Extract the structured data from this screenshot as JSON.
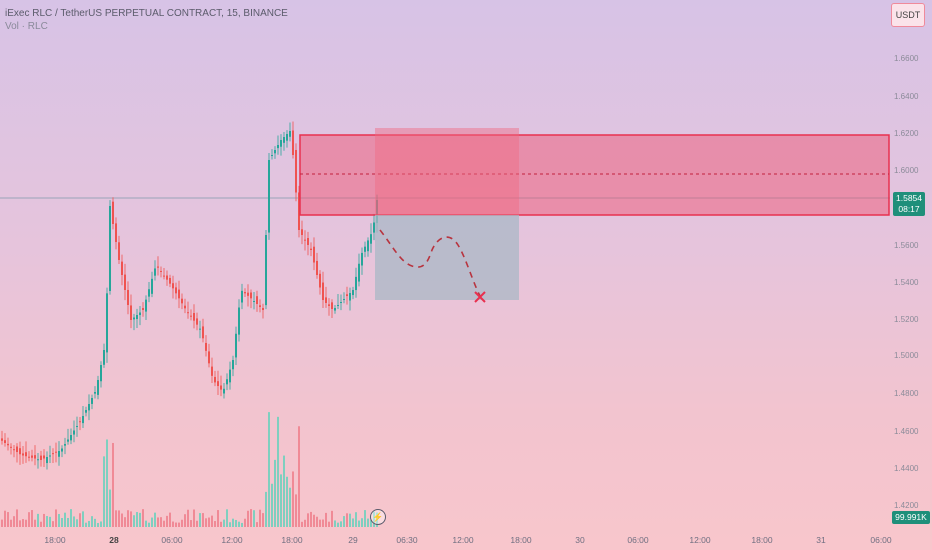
{
  "header": {
    "symbol_line": "iExec RLC / TetherUS PERPETUAL CONTRACT, 15, BINANCE",
    "volume_line": "Vol · RLC"
  },
  "currency_button": "USDT",
  "price_axis": [
    "1.6600",
    "1.6400",
    "1.6200",
    "1.6000",
    "1.5600",
    "1.5400",
    "1.5200",
    "1.5000",
    "1.4800",
    "1.4600",
    "1.4400",
    "1.4200"
  ],
  "time_axis": [
    {
      "label": "18:00",
      "bold": false
    },
    {
      "label": "28",
      "bold": true
    },
    {
      "label": "06:00",
      "bold": false
    },
    {
      "label": "12:00",
      "bold": false
    },
    {
      "label": "18:00",
      "bold": false
    },
    {
      "label": "29",
      "bold": false
    },
    {
      "label": "06:30",
      "bold": false
    },
    {
      "label": "12:00",
      "bold": false
    },
    {
      "label": "18:00",
      "bold": false
    },
    {
      "label": "30",
      "bold": false
    },
    {
      "label": "06:00",
      "bold": false
    },
    {
      "label": "12:00",
      "bold": false
    },
    {
      "label": "18:00",
      "bold": false
    },
    {
      "label": "31",
      "bold": false
    },
    {
      "label": "06:00",
      "bold": false
    }
  ],
  "current_price": {
    "price": "1.5854",
    "countdown": "08:17"
  },
  "volume_badge": "99.991K",
  "icons": {
    "flash": "lightning-icon",
    "target": "x-mark-icon"
  },
  "colors": {
    "up": "#26a69a",
    "down": "#ef5350",
    "zone": "#ef4e6a",
    "projection": "#a7b7c7"
  }
}
